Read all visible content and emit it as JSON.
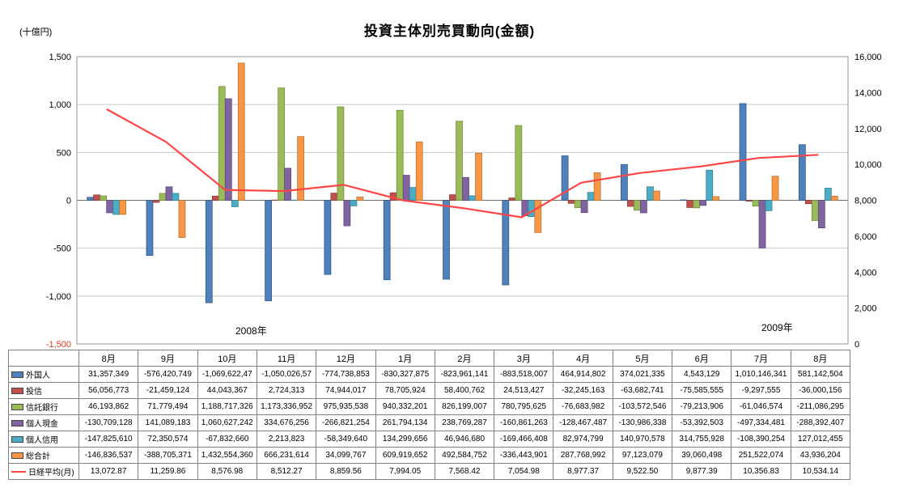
{
  "title": "投資主体別売買動向(金額)",
  "unit_label": "(十億円)",
  "year_labels": [
    "2008年",
    "2009年"
  ],
  "chart_data": {
    "type": "bar+line",
    "title": "投資主体別売買動向(金額)",
    "categories": [
      "8月",
      "9月",
      "10月",
      "11月",
      "12月",
      "1月",
      "2月",
      "3月",
      "4月",
      "5月",
      "6月",
      "7月",
      "8月"
    ],
    "left_axis": {
      "title": "(十億円)",
      "min": -1500,
      "max": 1500,
      "step": 500,
      "tick_labels": [
        "1,500",
        "1,000",
        "500",
        "0",
        "-500",
        "-1,000",
        "-1,500"
      ],
      "min_label_color": "#E8391D"
    },
    "right_axis": {
      "min": 0,
      "max": 16000,
      "step": 2000,
      "tick_labels": [
        "16,000",
        "14,000",
        "12,000",
        "10,000",
        "8,000",
        "6,000",
        "4,000",
        "2,000",
        "0"
      ]
    },
    "grid": true,
    "legend_position": "table-left",
    "bar_series": [
      {
        "name": "外国人",
        "color": "#4F81BD",
        "border": "#2F5684",
        "values_billion": [
          31.4,
          -576.4,
          -1069.6,
          -1050.0,
          -774.7,
          -830.3,
          -824.0,
          -883.5,
          464.9,
          374.0,
          4.5,
          1010.1,
          581.1
        ]
      },
      {
        "name": "投信",
        "color": "#C0504D",
        "border": "#8C3836",
        "values_billion": [
          56.1,
          -21.5,
          44.0,
          2.7,
          74.9,
          78.7,
          58.4,
          24.5,
          -32.2,
          -63.7,
          -75.6,
          -9.3,
          -36.0
        ]
      },
      {
        "name": "信託銀行",
        "color": "#9BBB59",
        "border": "#6F8B3A",
        "values_billion": [
          46.2,
          71.8,
          1188.7,
          1173.3,
          975.9,
          940.3,
          826.2,
          780.8,
          -76.7,
          -103.6,
          -79.2,
          -61.0,
          -211.1
        ]
      },
      {
        "name": "個人現金",
        "color": "#8064A2",
        "border": "#5C4776",
        "values_billion": [
          -130.7,
          141.1,
          1060.6,
          334.7,
          -266.8,
          261.8,
          238.8,
          -160.9,
          -128.5,
          -131.0,
          -53.4,
          -497.3,
          -288.4
        ]
      },
      {
        "name": "個人信用",
        "color": "#4BACC6",
        "border": "#357D92",
        "values_billion": [
          -147.8,
          72.4,
          -67.8,
          2.2,
          -58.3,
          134.3,
          46.9,
          -169.5,
          83.0,
          141.0,
          314.8,
          -108.4,
          127.0
        ]
      },
      {
        "name": "総合計",
        "color": "#F79646",
        "border": "#BC6F2C",
        "values_billion": [
          -146.8,
          -388.7,
          1432.6,
          666.2,
          34.1,
          609.9,
          492.6,
          -336.4,
          287.8,
          97.1,
          39.1,
          251.5,
          43.9
        ]
      }
    ],
    "line_series": {
      "name": "日経平均(月)",
      "color": "#FF4545",
      "values": [
        13072.87,
        11259.86,
        8576.98,
        8512.27,
        8859.56,
        7994.05,
        7568.42,
        7054.98,
        8977.37,
        9522.5,
        9877.39,
        10356.83,
        10534.14
      ]
    }
  },
  "table": {
    "rows": [
      {
        "name": "外国人",
        "swatch": "bar",
        "color": "#4F81BD",
        "values": [
          "31,357,349",
          "-576,420,749",
          "-1,069,622,47",
          "-1,050,026,57",
          "-774,738,853",
          "-830,327,875",
          "-823,961,141",
          "-883,518,007",
          "464,914,802",
          "374,021,335",
          "4,543,129",
          "1,010,146,341",
          "581,142,504"
        ]
      },
      {
        "name": "投信",
        "swatch": "bar",
        "color": "#C0504D",
        "values": [
          "56,056,773",
          "-21,459,124",
          "44,043,367",
          "2,724,313",
          "74,944,017",
          "78,705,924",
          "58,400,762",
          "24,513,427",
          "-32,245,163",
          "-63,682,741",
          "-75,585,555",
          "-9,297,555",
          "-36,000,156"
        ]
      },
      {
        "name": "信託銀行",
        "swatch": "bar",
        "color": "#9BBB59",
        "values": [
          "46,193,862",
          "71,779,494",
          "1,188,717,326",
          "1,173,336,952",
          "975,935,538",
          "940,332,201",
          "826,199,007",
          "780,795,625",
          "-76,683,982",
          "-103,572,546",
          "-79,213,906",
          "-61,046,574",
          "-211,086,295"
        ]
      },
      {
        "name": "個人現金",
        "swatch": "bar",
        "color": "#8064A2",
        "values": [
          "-130,709,128",
          "141,089,183",
          "1,060,627,242",
          "334,676,256",
          "-266,821,254",
          "261,794,134",
          "238,769,287",
          "-160,861,263",
          "-128,467,487",
          "-130,986,338",
          "-53,392,503",
          "-497,334,481",
          "-288,392,407"
        ]
      },
      {
        "name": "個人信用",
        "swatch": "bar",
        "color": "#4BACC6",
        "values": [
          "-147,825,610",
          "72,350,574",
          "-67,832,660",
          "2,213,823",
          "-58,349,640",
          "134,299,656",
          "46,946,680",
          "-169,466,408",
          "82,974,799",
          "140,970,578",
          "314,755,928",
          "-108,390,254",
          "127,012,455"
        ]
      },
      {
        "name": "総合計",
        "swatch": "bar",
        "color": "#F79646",
        "values": [
          "-146,836,537",
          "-388,705,371",
          "1,432,554,360",
          "666,231,614",
          "34,099,767",
          "609,919,652",
          "492,584,752",
          "-336,443,901",
          "287,768,992",
          "97,123,079",
          "39,060,498",
          "251,522,074",
          "43,936,204"
        ]
      },
      {
        "name": "日経平均(月)",
        "swatch": "line",
        "color": "#FF4545",
        "values": [
          "13,072.87",
          "11,259.86",
          "8,576.98",
          "8,512.27",
          "8,859.56",
          "7,994.05",
          "7,568.42",
          "7,054.98",
          "8,977.37",
          "9,522.50",
          "9,877.39",
          "10,356.83",
          "10,534.14"
        ]
      }
    ]
  },
  "colors": {
    "grid": "#C8C8C8",
    "plot_border": "#969696",
    "zero_line": "#6E6E6E",
    "table_border": "#808080"
  }
}
